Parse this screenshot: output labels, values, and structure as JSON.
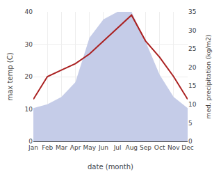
{
  "chart_data": {
    "type": "line",
    "xlabel": "date (month)",
    "ylabel": "max temp (C)",
    "y2label": "med. precipitation (kg/m2)",
    "categories": [
      "Jan",
      "Feb",
      "Mar",
      "Apr",
      "May",
      "Jun",
      "Jul",
      "Aug",
      "Sep",
      "Oct",
      "Nov",
      "Dec"
    ],
    "series": [
      {
        "type": "area",
        "color": "#c5cce8",
        "axis": "y2",
        "values": [
          9,
          10,
          12,
          16,
          28,
          33,
          35,
          35,
          27,
          18,
          12,
          9
        ]
      },
      {
        "type": "line",
        "color": "#aa2020",
        "values": [
          13,
          20,
          22,
          24,
          27,
          31,
          35,
          39,
          31,
          26,
          20,
          13
        ]
      }
    ],
    "ylim": [
      0,
      40
    ],
    "yticks": [
      0,
      10,
      20,
      30,
      40
    ],
    "y2lim": [
      0,
      35
    ],
    "y2ticks": [
      0,
      5,
      10,
      15,
      20,
      25,
      30,
      35
    ],
    "grid": true
  }
}
